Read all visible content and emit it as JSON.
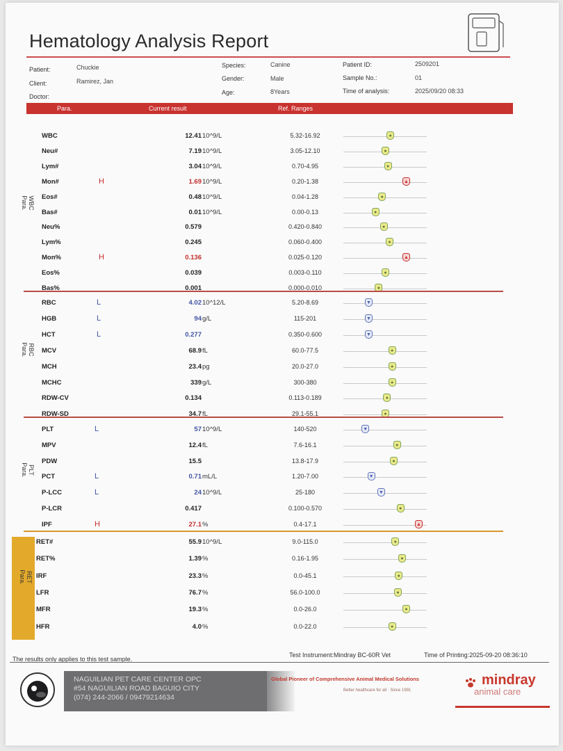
{
  "title": "Hematology Analysis Report",
  "info": {
    "patient_label": "Patient:",
    "patient": "Chuckie",
    "client_label": "Client:",
    "client": "Ramirez, Jan",
    "doctor_label": "Doctor:",
    "species_label": "Species:",
    "species": "Canine",
    "gender_label": "Gender:",
    "gender": "Male",
    "age_label": "Age:",
    "age": "8Years",
    "pid_label": "Patient ID:",
    "pid": "2509201",
    "sample_label": "Sample No.:",
    "sample": "01",
    "time_label": "Time of analysis:",
    "time": "2025/09/20 08:33"
  },
  "header": {
    "para": "Para.",
    "result": "Current result",
    "ref": "Ref. Ranges"
  },
  "groups": [
    {
      "label": "WBC\nPara.",
      "rows": [
        {
          "name": "WBC",
          "flag": "",
          "result": "12.41",
          "unit": "10^9/L",
          "ref": "5.32-16.92",
          "status": "normal",
          "pos": 0.56
        },
        {
          "name": "Neu#",
          "flag": "",
          "result": "7.19",
          "unit": "10^9/L",
          "ref": "3.05-12.10",
          "status": "normal",
          "pos": 0.5
        },
        {
          "name": "Lym#",
          "flag": "",
          "result": "3.04",
          "unit": "10^9/L",
          "ref": "0.70-4.95",
          "status": "normal",
          "pos": 0.53
        },
        {
          "name": "Mon#",
          "flag": "H",
          "result": "1.69",
          "unit": "10^9/L",
          "ref": "0.20-1.38",
          "status": "high",
          "pos": 0.75
        },
        {
          "name": "Eos#",
          "flag": "",
          "result": "0.48",
          "unit": "10^9/L",
          "ref": "0.04-1.28",
          "status": "normal",
          "pos": 0.46
        },
        {
          "name": "Bas#",
          "flag": "",
          "result": "0.01",
          "unit": "10^9/L",
          "ref": "0.00-0.13",
          "status": "normal",
          "pos": 0.38
        },
        {
          "name": "Neu%",
          "flag": "",
          "result": "0.579",
          "unit": "",
          "ref": "0.420-0.840",
          "status": "normal",
          "pos": 0.48
        },
        {
          "name": "Lym%",
          "flag": "",
          "result": "0.245",
          "unit": "",
          "ref": "0.060-0.400",
          "status": "normal",
          "pos": 0.55
        },
        {
          "name": "Mon%",
          "flag": "H",
          "result": "0.136",
          "unit": "",
          "ref": "0.025-0.120",
          "status": "high",
          "pos": 0.75
        },
        {
          "name": "Eos%",
          "flag": "",
          "result": "0.039",
          "unit": "",
          "ref": "0.003-0.110",
          "status": "normal",
          "pos": 0.5
        },
        {
          "name": "Bas%",
          "flag": "",
          "result": "0.001",
          "unit": "",
          "ref": "0.000-0.010",
          "status": "normal",
          "pos": 0.42
        }
      ]
    },
    {
      "label": "RBC\nPara.",
      "rows": [
        {
          "name": "RBC",
          "flag": "L",
          "result": "4.02",
          "unit": "10^12/L",
          "ref": "5.20-8.69",
          "status": "low",
          "pos": 0.3
        },
        {
          "name": "HGB",
          "flag": "L",
          "result": "94",
          "unit": "g/L",
          "ref": "115-201",
          "status": "low",
          "pos": 0.3
        },
        {
          "name": "HCT",
          "flag": "L",
          "result": "0.277",
          "unit": "",
          "ref": "0.350-0.600",
          "status": "low",
          "pos": 0.3
        },
        {
          "name": "MCV",
          "flag": "",
          "result": "68.9",
          "unit": "fL",
          "ref": "60.0-77.5",
          "status": "normal",
          "pos": 0.58
        },
        {
          "name": "MCH",
          "flag": "",
          "result": "23.4",
          "unit": "pg",
          "ref": "20.0-27.0",
          "status": "normal",
          "pos": 0.58
        },
        {
          "name": "MCHC",
          "flag": "",
          "result": "339",
          "unit": "g/L",
          "ref": "300-380",
          "status": "normal",
          "pos": 0.58
        },
        {
          "name": "RDW-CV",
          "flag": "",
          "result": "0.134",
          "unit": "",
          "ref": "0.113-0.189",
          "status": "normal",
          "pos": 0.52
        },
        {
          "name": "RDW-SD",
          "flag": "",
          "result": "34.7",
          "unit": "fL",
          "ref": "29.1-55.1",
          "status": "normal",
          "pos": 0.5
        }
      ]
    },
    {
      "label": "PLT\nPara.",
      "rows": [
        {
          "name": "PLT",
          "flag": "L",
          "result": "57",
          "unit": "10^9/L",
          "ref": "140-520",
          "status": "low",
          "pos": 0.26
        },
        {
          "name": "MPV",
          "flag": "",
          "result": "12.4",
          "unit": "fL",
          "ref": "7.6-16.1",
          "status": "normal",
          "pos": 0.64
        },
        {
          "name": "PDW",
          "flag": "",
          "result": "15.5",
          "unit": "",
          "ref": "13.8-17.9",
          "status": "normal",
          "pos": 0.6
        },
        {
          "name": "PCT",
          "flag": "L",
          "result": "0.71",
          "unit": "mL/L",
          "ref": "1.20-7.00",
          "status": "low",
          "pos": 0.33
        },
        {
          "name": "P-LCC",
          "flag": "L",
          "result": "24",
          "unit": "10^9/L",
          "ref": "25-180",
          "status": "low",
          "pos": 0.45
        },
        {
          "name": "P-LCR",
          "flag": "",
          "result": "0.417",
          "unit": "",
          "ref": "0.100-0.570",
          "status": "normal",
          "pos": 0.68
        },
        {
          "name": "IPF",
          "flag": "H",
          "result": "27.1",
          "unit": "%",
          "ref": "0.4-17.1",
          "status": "high",
          "pos": 0.9
        }
      ]
    },
    {
      "label": "RET\nPara.",
      "rows": [
        {
          "name": "RET#",
          "flag": "",
          "result": "55.9",
          "unit": "10^9/L",
          "ref": "9.0-115.0",
          "status": "normal",
          "pos": 0.62
        },
        {
          "name": "RET%",
          "flag": "",
          "result": "1.39",
          "unit": "%",
          "ref": "0.16-1.95",
          "status": "normal",
          "pos": 0.7
        },
        {
          "name": "IRF",
          "flag": "",
          "result": "23.3",
          "unit": "%",
          "ref": "0.0-45.1",
          "status": "normal",
          "pos": 0.66
        },
        {
          "name": "LFR",
          "flag": "",
          "result": "76.7",
          "unit": "%",
          "ref": "56.0-100.0",
          "status": "normal",
          "pos": 0.65
        },
        {
          "name": "MFR",
          "flag": "",
          "result": "19.3",
          "unit": "%",
          "ref": "0.0-26.0",
          "status": "normal",
          "pos": 0.75
        },
        {
          "name": "HFR",
          "flag": "",
          "result": "4.0",
          "unit": "%",
          "ref": "0.0-22.0",
          "status": "normal",
          "pos": 0.58
        }
      ]
    }
  ],
  "footer": {
    "note": "The results only applies to this test sample.",
    "instrument": "Test Instrument:Mindray BC-60R Vet",
    "printed": "Time of Printing:2025-09-20 08:36:10"
  },
  "clinic": {
    "name": "NAGUILIAN PET CARE CENTER OPC",
    "address": "#54 NAGUILIAN ROAD BAGUIO CITY",
    "phone": "(074) 244-2066 / 09479214634"
  },
  "brand": {
    "slogan": "Global Pioneer of Comprehensive Animal Medical Solutions",
    "tagline": "Better healthcare for all  ·  Since 1991",
    "name": "mindray",
    "sub": "animal care"
  },
  "colors": {
    "accent": "#c8322f",
    "ret_band": "#e3a92a",
    "high": "#c32c2c",
    "low": "#4054a4"
  }
}
